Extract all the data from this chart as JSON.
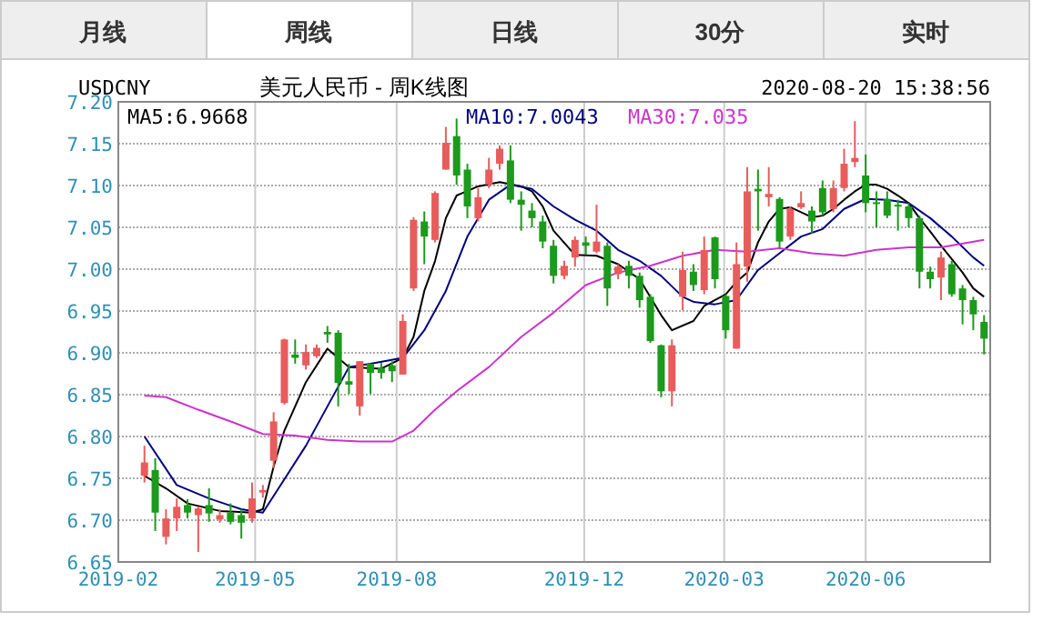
{
  "chart_data": {
    "type": "candlestick",
    "title": "美元人民币 - 周K线图",
    "annotations": [
      "月线",
      "周线",
      "日线",
      "30分",
      "实时",
      "USDCNY",
      "2020-08-20 15:38:56"
    ],
    "x": [
      "2019-02-18",
      "2019-02-25",
      "2019-03-04",
      "2019-03-11",
      "2019-03-18",
      "2019-03-25",
      "2019-04-01",
      "2019-04-08",
      "2019-04-15",
      "2019-04-22",
      "2019-04-29",
      "2019-05-06",
      "2019-05-13",
      "2019-05-20",
      "2019-05-27",
      "2019-06-03",
      "2019-06-10",
      "2019-06-17",
      "2019-06-24",
      "2019-07-01",
      "2019-07-08",
      "2019-07-15",
      "2019-07-22",
      "2019-07-29",
      "2019-08-05",
      "2019-08-12",
      "2019-08-19",
      "2019-08-26",
      "2019-09-02",
      "2019-09-09",
      "2019-09-16",
      "2019-09-23",
      "2019-09-30",
      "2019-10-07",
      "2019-10-14",
      "2019-10-21",
      "2019-10-28",
      "2019-11-04",
      "2019-11-11",
      "2019-11-18",
      "2019-11-25",
      "2019-12-02",
      "2019-12-09",
      "2019-12-16",
      "2019-12-23",
      "2019-12-30",
      "2020-01-06",
      "2020-01-13",
      "2020-01-20",
      "2020-01-27",
      "2020-02-03",
      "2020-02-10",
      "2020-02-17",
      "2020-02-24",
      "2020-03-02",
      "2020-03-09",
      "2020-03-16",
      "2020-03-23",
      "2020-03-30",
      "2020-04-06",
      "2020-04-13",
      "2020-04-20",
      "2020-04-27",
      "2020-05-04",
      "2020-05-11",
      "2020-05-18",
      "2020-05-25",
      "2020-06-01",
      "2020-06-08",
      "2020-06-15",
      "2020-06-22",
      "2020-06-29",
      "2020-07-06",
      "2020-07-13",
      "2020-07-20",
      "2020-07-27",
      "2020-08-03",
      "2020-08-10",
      "2020-08-17"
    ],
    "ohlc": [
      [
        6.753,
        6.789,
        6.745,
        6.769
      ],
      [
        6.76,
        6.774,
        6.687,
        6.709
      ],
      [
        6.68,
        6.713,
        6.671,
        6.702
      ],
      [
        6.702,
        6.726,
        6.687,
        6.716
      ],
      [
        6.718,
        6.725,
        6.702,
        6.709
      ],
      [
        6.706,
        6.716,
        6.662,
        6.714
      ],
      [
        6.718,
        6.738,
        6.698,
        6.708
      ],
      [
        6.701,
        6.713,
        6.697,
        6.706
      ],
      [
        6.709,
        6.72,
        6.695,
        6.698
      ],
      [
        6.706,
        6.713,
        6.678,
        6.697
      ],
      [
        6.702,
        6.745,
        6.697,
        6.726
      ],
      [
        6.733,
        6.742,
        6.727,
        6.736
      ],
      [
        6.771,
        6.829,
        6.762,
        6.818
      ],
      [
        6.84,
        6.917,
        6.838,
        6.916
      ],
      [
        6.898,
        6.916,
        6.887,
        6.894
      ],
      [
        6.885,
        6.91,
        6.88,
        6.901
      ],
      [
        6.896,
        6.91,
        6.894,
        6.906
      ],
      [
        6.925,
        6.932,
        6.912,
        6.922
      ],
      [
        6.924,
        6.927,
        6.836,
        6.864
      ],
      [
        6.866,
        6.887,
        6.851,
        6.862
      ],
      [
        6.836,
        6.89,
        6.825,
        6.89
      ],
      [
        6.887,
        6.887,
        6.851,
        6.876
      ],
      [
        6.882,
        6.888,
        6.869,
        6.876
      ],
      [
        6.885,
        6.89,
        6.865,
        6.878
      ],
      [
        6.874,
        6.946,
        6.874,
        6.938
      ],
      [
        6.977,
        7.062,
        6.974,
        7.059
      ],
      [
        7.057,
        7.069,
        7.006,
        7.039
      ],
      [
        7.035,
        7.093,
        7.032,
        7.091
      ],
      [
        7.119,
        7.17,
        7.119,
        7.151
      ],
      [
        7.159,
        7.18,
        7.101,
        7.112
      ],
      [
        7.119,
        7.126,
        7.061,
        7.075
      ],
      [
        7.061,
        7.097,
        7.057,
        7.086
      ],
      [
        7.101,
        7.133,
        7.097,
        7.119
      ],
      [
        7.126,
        7.148,
        7.119,
        7.144
      ],
      [
        7.13,
        7.148,
        7.079,
        7.083
      ],
      [
        7.083,
        7.093,
        7.046,
        7.077
      ],
      [
        7.07,
        7.079,
        7.05,
        7.061
      ],
      [
        7.057,
        7.064,
        7.025,
        7.033
      ],
      [
        7.028,
        7.035,
        6.983,
        6.992
      ],
      [
        6.992,
        7.01,
        6.988,
        7.004
      ],
      [
        7.014,
        7.039,
        7.003,
        7.035
      ],
      [
        7.032,
        7.039,
        7.017,
        7.028
      ],
      [
        7.021,
        7.077,
        7.019,
        7.033
      ],
      [
        7.028,
        7.032,
        6.956,
        6.977
      ],
      [
        6.994,
        7.006,
        6.988,
        7.003
      ],
      [
        7.004,
        7.01,
        6.977,
        6.992
      ],
      [
        6.992,
        6.996,
        6.954,
        6.963
      ],
      [
        6.967,
        6.97,
        6.912,
        6.914
      ],
      [
        6.909,
        6.91,
        6.847,
        6.854
      ],
      [
        6.854,
        6.916,
        6.836,
        6.909
      ],
      [
        6.967,
        7.021,
        6.951,
        6.999
      ],
      [
        6.997,
        7.006,
        6.974,
        6.981
      ],
      [
        6.975,
        7.039,
        6.97,
        7.023
      ],
      [
        7.038,
        7.039,
        6.977,
        6.988
      ],
      [
        6.968,
        6.97,
        6.917,
        6.927
      ],
      [
        6.905,
        7.032,
        6.905,
        7.006
      ],
      [
        7.003,
        7.122,
        6.985,
        7.093
      ],
      [
        7.096,
        7.119,
        7.046,
        7.093
      ],
      [
        7.086,
        7.122,
        7.075,
        7.09
      ],
      [
        7.084,
        7.086,
        7.025,
        7.033
      ],
      [
        7.039,
        7.075,
        7.035,
        7.072
      ],
      [
        7.074,
        7.093,
        7.072,
        7.079
      ],
      [
        7.07,
        7.075,
        7.043,
        7.057
      ],
      [
        7.097,
        7.106,
        7.064,
        7.068
      ],
      [
        7.072,
        7.106,
        7.068,
        7.097
      ],
      [
        7.097,
        7.144,
        7.093,
        7.126
      ],
      [
        7.128,
        7.177,
        7.122,
        7.133
      ],
      [
        7.112,
        7.137,
        7.068,
        7.079
      ],
      [
        7.08,
        7.093,
        7.05,
        7.078
      ],
      [
        7.084,
        7.093,
        7.061,
        7.064
      ],
      [
        7.077,
        7.083,
        7.046,
        7.075
      ],
      [
        7.075,
        7.079,
        7.05,
        7.061
      ],
      [
        7.061,
        7.064,
        6.977,
        6.997
      ],
      [
        6.997,
        7.003,
        6.977,
        6.988
      ],
      [
        6.99,
        7.021,
        6.963,
        7.014
      ],
      [
        7.006,
        7.01,
        6.967,
        6.97
      ],
      [
        6.977,
        6.981,
        6.934,
        6.963
      ],
      [
        6.963,
        6.967,
        6.927,
        6.946
      ],
      [
        6.937,
        6.945,
        6.898,
        6.917
      ]
    ],
    "colors": [
      "#e85c5c",
      "#1b9a1b",
      "#e85c5c",
      "#e85c5c",
      "#1b9a1b",
      "#e85c5c",
      "#1b9a1b",
      "#e85c5c",
      "#1b9a1b",
      "#1b9a1b",
      "#e85c5c",
      "#e85c5c",
      "#e85c5c",
      "#e85c5c",
      "#1b9a1b",
      "#e85c5c",
      "#e85c5c",
      "#1b9a1b",
      "#1b9a1b",
      "#1b9a1b",
      "#e85c5c",
      "#1b9a1b",
      "#1b9a1b",
      "#1b9a1b",
      "#e85c5c",
      "#e85c5c",
      "#1b9a1b",
      "#e85c5c",
      "#e85c5c",
      "#1b9a1b",
      "#1b9a1b",
      "#e85c5c",
      "#e85c5c",
      "#e85c5c",
      "#1b9a1b",
      "#1b9a1b",
      "#1b9a1b",
      "#1b9a1b",
      "#1b9a1b",
      "#e85c5c",
      "#e85c5c",
      "#1b9a1b",
      "#e85c5c",
      "#1b9a1b",
      "#e85c5c",
      "#1b9a1b",
      "#1b9a1b",
      "#1b9a1b",
      "#1b9a1b",
      "#e85c5c",
      "#e85c5c",
      "#1b9a1b",
      "#e85c5c",
      "#1b9a1b",
      "#1b9a1b",
      "#e85c5c",
      "#e85c5c",
      "#1b9a1b",
      "#e85c5c",
      "#1b9a1b",
      "#e85c5c",
      "#e85c5c",
      "#1b9a1b",
      "#1b9a1b",
      "#e85c5c",
      "#e85c5c",
      "#e85c5c",
      "#1b9a1b",
      "#1b9a1b",
      "#1b9a1b",
      "#1b9a1b",
      "#1b9a1b",
      "#1b9a1b",
      "#1b9a1b",
      "#e85c5c",
      "#1b9a1b",
      "#1b9a1b",
      "#1b9a1b",
      "#1b9a1b"
    ],
    "series": [
      {
        "name": "MA5:6.9668",
        "type": "line",
        "color": "#000000",
        "x": [
          "2019-02-18",
          "2019-03-04",
          "2019-03-18",
          "2019-04-08",
          "2019-04-29",
          "2019-05-06",
          "2019-05-13",
          "2019-05-20",
          "2019-06-03",
          "2019-06-17",
          "2019-07-01",
          "2019-07-22",
          "2019-08-05",
          "2019-08-12",
          "2019-08-19",
          "2019-08-26",
          "2019-09-02",
          "2019-09-09",
          "2019-09-23",
          "2019-10-07",
          "2019-10-21",
          "2019-10-28",
          "2019-11-04",
          "2019-11-11",
          "2019-11-25",
          "2019-12-09",
          "2019-12-23",
          "2020-01-06",
          "2020-01-20",
          "2020-01-27",
          "2020-02-10",
          "2020-02-17",
          "2020-03-02",
          "2020-03-09",
          "2020-03-16",
          "2020-03-23",
          "2020-03-30",
          "2020-04-06",
          "2020-04-13",
          "2020-04-27",
          "2020-05-04",
          "2020-05-11",
          "2020-05-18",
          "2020-05-25",
          "2020-06-01",
          "2020-06-08",
          "2020-06-15",
          "2020-06-22",
          "2020-06-29",
          "2020-07-06",
          "2020-07-13",
          "2020-07-20",
          "2020-07-27",
          "2020-08-03",
          "2020-08-10",
          "2020-08-17"
        ],
        "values": [
          6.753,
          6.738,
          6.72,
          6.711,
          6.709,
          6.713,
          6.764,
          6.807,
          6.865,
          6.905,
          6.883,
          6.881,
          6.894,
          6.919,
          6.974,
          7.01,
          7.061,
          7.088,
          7.099,
          7.104,
          7.099,
          7.093,
          7.075,
          7.046,
          7.017,
          7.016,
          7.006,
          6.988,
          6.945,
          6.927,
          6.938,
          6.956,
          6.97,
          6.985,
          6.996,
          7.032,
          7.057,
          7.072,
          7.074,
          7.062,
          7.064,
          7.072,
          7.083,
          7.093,
          7.101,
          7.101,
          7.096,
          7.088,
          7.079,
          7.061,
          7.045,
          7.028,
          7.012,
          6.996,
          6.977,
          6.967
        ]
      },
      {
        "name": "MA10:7.0043",
        "type": "line",
        "color": "#00007f",
        "x": [
          "2019-02-18",
          "2019-03-11",
          "2019-04-01",
          "2019-04-22",
          "2019-05-06",
          "2019-05-20",
          "2019-06-03",
          "2019-06-17",
          "2019-07-01",
          "2019-07-15",
          "2019-08-05",
          "2019-08-19",
          "2019-09-02",
          "2019-09-16",
          "2019-09-30",
          "2019-10-14",
          "2019-10-28",
          "2019-11-11",
          "2019-11-25",
          "2019-12-09",
          "2019-12-23",
          "2020-01-06",
          "2020-01-20",
          "2020-02-03",
          "2020-02-10",
          "2020-02-24",
          "2020-03-09",
          "2020-03-23",
          "2020-04-06",
          "2020-04-20",
          "2020-05-04",
          "2020-05-18",
          "2020-06-01",
          "2020-06-15",
          "2020-06-29",
          "2020-07-13",
          "2020-07-27",
          "2020-08-10",
          "2020-08-17"
        ],
        "values": [
          6.8,
          6.742,
          6.726,
          6.713,
          6.709,
          6.749,
          6.789,
          6.836,
          6.883,
          6.887,
          6.894,
          6.927,
          6.974,
          7.039,
          7.083,
          7.101,
          7.096,
          7.075,
          7.059,
          7.046,
          7.023,
          7.01,
          6.992,
          6.967,
          6.961,
          6.958,
          6.963,
          6.999,
          7.019,
          7.039,
          7.048,
          7.072,
          7.084,
          7.083,
          7.079,
          7.061,
          7.039,
          7.014,
          7.004
        ]
      },
      {
        "name": "MA30:7.035",
        "type": "line",
        "color": "#cc33cc",
        "x": [
          "2019-02-18",
          "2019-03-04",
          "2019-03-25",
          "2019-04-15",
          "2019-05-06",
          "2019-05-27",
          "2019-06-17",
          "2019-07-08",
          "2019-07-29",
          "2019-08-12",
          "2019-08-26",
          "2019-09-09",
          "2019-09-30",
          "2019-10-21",
          "2019-11-11",
          "2019-12-02",
          "2019-12-23",
          "2020-01-13",
          "2020-02-03",
          "2020-02-24",
          "2020-03-16",
          "2020-04-06",
          "2020-04-27",
          "2020-05-18",
          "2020-06-08",
          "2020-06-29",
          "2020-07-20",
          "2020-08-17"
        ],
        "values": [
          6.849,
          6.847,
          6.832,
          6.818,
          6.803,
          6.801,
          6.796,
          6.794,
          6.794,
          6.807,
          6.832,
          6.854,
          6.883,
          6.919,
          6.948,
          6.981,
          6.996,
          7.004,
          7.016,
          7.023,
          7.021,
          7.025,
          7.019,
          7.016,
          7.023,
          7.026,
          7.026,
          7.035
        ]
      }
    ],
    "xlim": [
      "2019-02-01",
      "2020-08-21"
    ],
    "xticks": [
      "2019-02",
      "2019-05",
      "2019-08",
      "2019-12",
      "2020-03",
      "2020-06"
    ],
    "ylim": [
      6.65,
      7.2
    ],
    "yticks": [
      {
        "value": 7.2,
        "label": "7.20"
      },
      7.15,
      {
        "value": 7.1,
        "label": "7.10"
      },
      7.05,
      {
        "value": 7.0,
        "label": "7.00"
      },
      6.95,
      {
        "value": 6.9,
        "label": "6.90"
      },
      6.85,
      {
        "value": 6.8,
        "label": "6.80"
      },
      6.75,
      {
        "value": 6.7,
        "label": "6.70"
      },
      6.65
    ],
    "grid": true,
    "legend": "top"
  }
}
